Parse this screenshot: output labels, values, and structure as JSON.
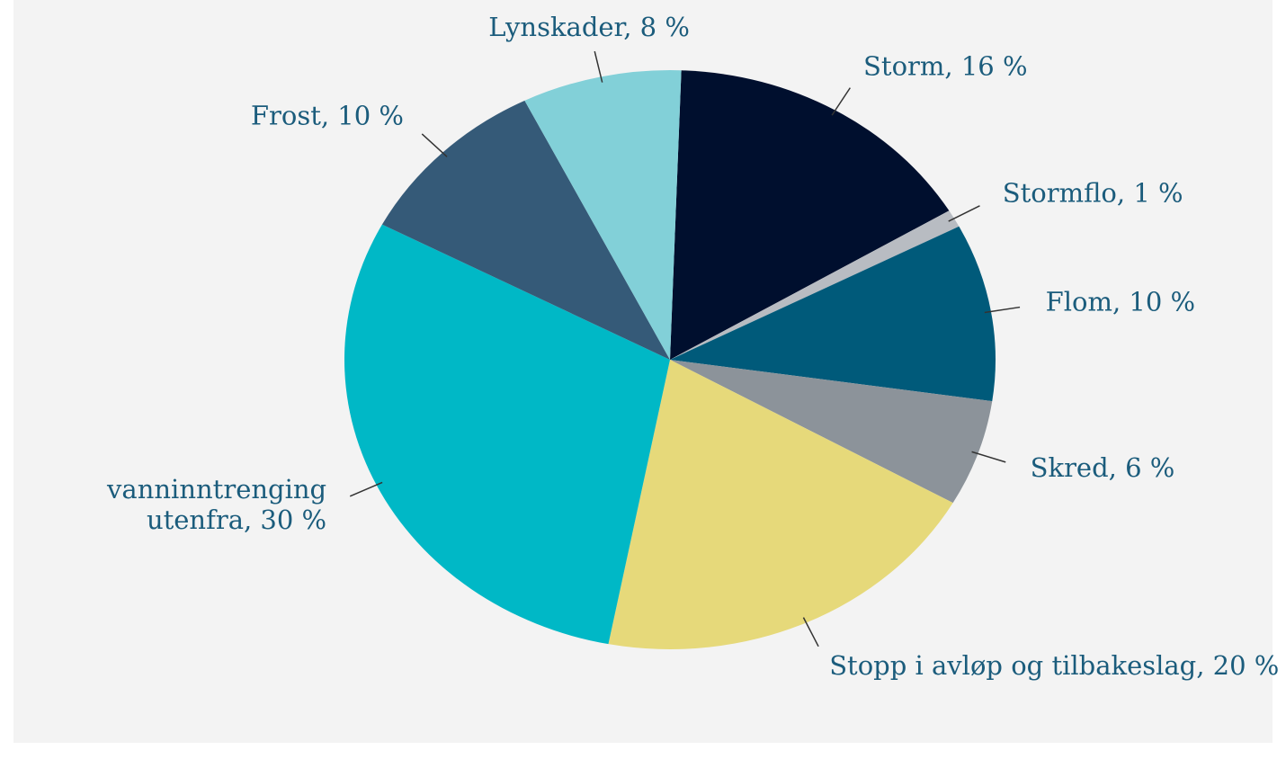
{
  "chart_data": {
    "type": "pie",
    "labels": [
      [
        "Storm, 16 %"
      ],
      [
        "Stormflo, 1 %"
      ],
      [
        "Flom, 10 %"
      ],
      [
        "Skred, 6 %"
      ],
      [
        "Stopp i avløp og tilbakeslag, 20 %"
      ],
      [
        "vanninntrenging",
        "utenfra, 30 %"
      ],
      [
        "Frost, 10 %"
      ],
      [
        "Lynskader, 8 %"
      ]
    ],
    "values": [
      16,
      1,
      10,
      6,
      20,
      30,
      10,
      8
    ],
    "colors": [
      "#000f2e",
      "#b8bcc2",
      "#005a7a",
      "#8c939a",
      "#e6d97a",
      "#00b8c6",
      "#355a78",
      "#82d0d8"
    ]
  }
}
